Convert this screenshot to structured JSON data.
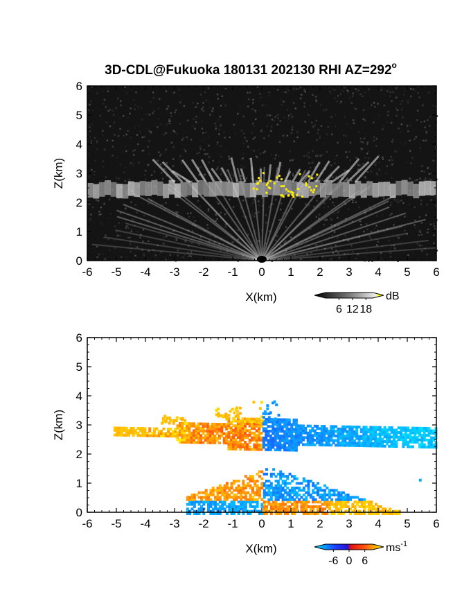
{
  "chart_data": [
    {
      "type": "heatmap",
      "panel": "reflectivity",
      "title": "3D-CDL@Fukuoka 180131 202130 RHI AZ=292",
      "title_superscript": "o",
      "xlabel": "X(km)",
      "ylabel": "Z(km)",
      "xlim": [
        -6,
        6
      ],
      "ylim": [
        0,
        6
      ],
      "x_ticks": [
        "-6",
        "-5",
        "-4",
        "-3",
        "-2",
        "-1",
        "0",
        "1",
        "2",
        "3",
        "4",
        "5",
        "6"
      ],
      "y_ticks": [
        "0",
        "1",
        "2",
        "3",
        "4",
        "5",
        "6"
      ],
      "colorbar": {
        "unit": "dB",
        "ticks": [
          "6",
          "12",
          "18"
        ],
        "range": [
          0,
          21
        ],
        "colormap": "grayscale-to-yellow"
      },
      "features": {
        "cloud_layer_base_km": 2.2,
        "cloud_layer_top_km": 2.7,
        "echo_rays_top_km": 3.6,
        "strong_echo_x_km": [
          -0.4,
          1.9
        ],
        "strong_echo_z_km": [
          2.2,
          3.1
        ]
      }
    },
    {
      "type": "heatmap",
      "panel": "doppler_velocity",
      "xlabel": "X(km)",
      "ylabel": "Z(km)",
      "xlim": [
        -6,
        6
      ],
      "ylim": [
        0,
        6
      ],
      "x_ticks": [
        "-6",
        "-5",
        "-4",
        "-3",
        "-2",
        "-1",
        "0",
        "1",
        "2",
        "3",
        "4",
        "5",
        "6"
      ],
      "y_ticks": [
        "0",
        "1",
        "2",
        "3",
        "4",
        "5",
        "6"
      ],
      "colorbar": {
        "unit": "ms",
        "unit_exponent": "-1",
        "ticks": [
          "-6",
          "0",
          "6"
        ],
        "range": [
          -9,
          9
        ],
        "colormap": "cyan-blue-red-yellow"
      },
      "features": {
        "upper_layer_z_km": [
          2.2,
          3.9
        ],
        "upper_layer_x_km": [
          -5.1,
          6
        ],
        "lower_layer_z_km": [
          0,
          1.6
        ],
        "lower_layer_x_km": [
          -2.6,
          4.7
        ],
        "velocity_sign_change_x_km": 0
      }
    }
  ]
}
